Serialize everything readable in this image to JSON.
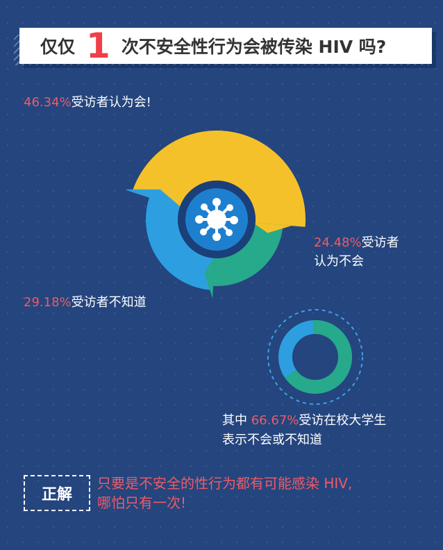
{
  "title": {
    "prefix": "仅仅",
    "number": "1",
    "suffix": "次不安全性行为会被传染 HIV 吗?"
  },
  "colors": {
    "yes": "#f5c12a",
    "no": "#27a98b",
    "unknown": "#2d9fe0",
    "center": "#1e7fcf",
    "highlight": "#f05a66"
  },
  "labels": {
    "yes": {
      "pct": "46.34%",
      "text": "受访者认为会!"
    },
    "no": {
      "pct": "24.48%",
      "text_line1": "受访者",
      "text_line2": "认为不会"
    },
    "unknown": {
      "pct": "29.18%",
      "text": "受访者不知道"
    },
    "students": {
      "prefix": "其中 ",
      "pct": "66.67%",
      "text_line1": "受访在校大学生",
      "text_line2": "表示不会或不知道"
    }
  },
  "chart_data": [
    {
      "type": "pie",
      "series": [
        {
          "name": "受访者认为会",
          "value": 46.34
        },
        {
          "name": "受访者认为不会",
          "value": 24.48
        },
        {
          "name": "受访者不知道",
          "value": 29.18
        }
      ]
    },
    {
      "type": "pie",
      "series": [
        {
          "name": "受访在校大学生表示不会或不知道",
          "value": 66.67
        }
      ]
    }
  ],
  "icons": {
    "center": "virus-icon"
  },
  "answer": {
    "label": "正解",
    "line1": "只要是不安全的性行为都有可能感染 HIV,",
    "line2": "哪怕只有一次!"
  }
}
